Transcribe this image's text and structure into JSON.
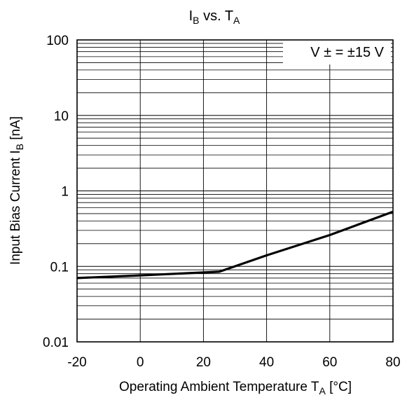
{
  "chart_data": {
    "type": "line",
    "title": {
      "main": "I",
      "sub1": "B",
      "mid": " vs. T",
      "sub2": "A"
    },
    "xlabel": {
      "main": "Operating Ambient Temperature T",
      "sub": "A",
      "unit": " [°C]"
    },
    "ylabel": {
      "main": "Input Bias Current I",
      "sub": "B",
      "unit": " [nA]"
    },
    "xlim": [
      -20,
      80
    ],
    "ylim": [
      0.01,
      100
    ],
    "yscale": "log",
    "grid": true,
    "x_ticks": [
      "-20",
      "0",
      "20",
      "40",
      "60",
      "80"
    ],
    "y_ticks": [
      "0.01",
      "0.1",
      "1",
      "10",
      "100"
    ],
    "annotation": "V ± = ±15 V",
    "series": [
      {
        "x": [
          -20,
          0,
          25,
          40,
          60,
          80
        ],
        "y": [
          0.07,
          0.076,
          0.085,
          0.14,
          0.26,
          0.53
        ]
      }
    ]
  }
}
